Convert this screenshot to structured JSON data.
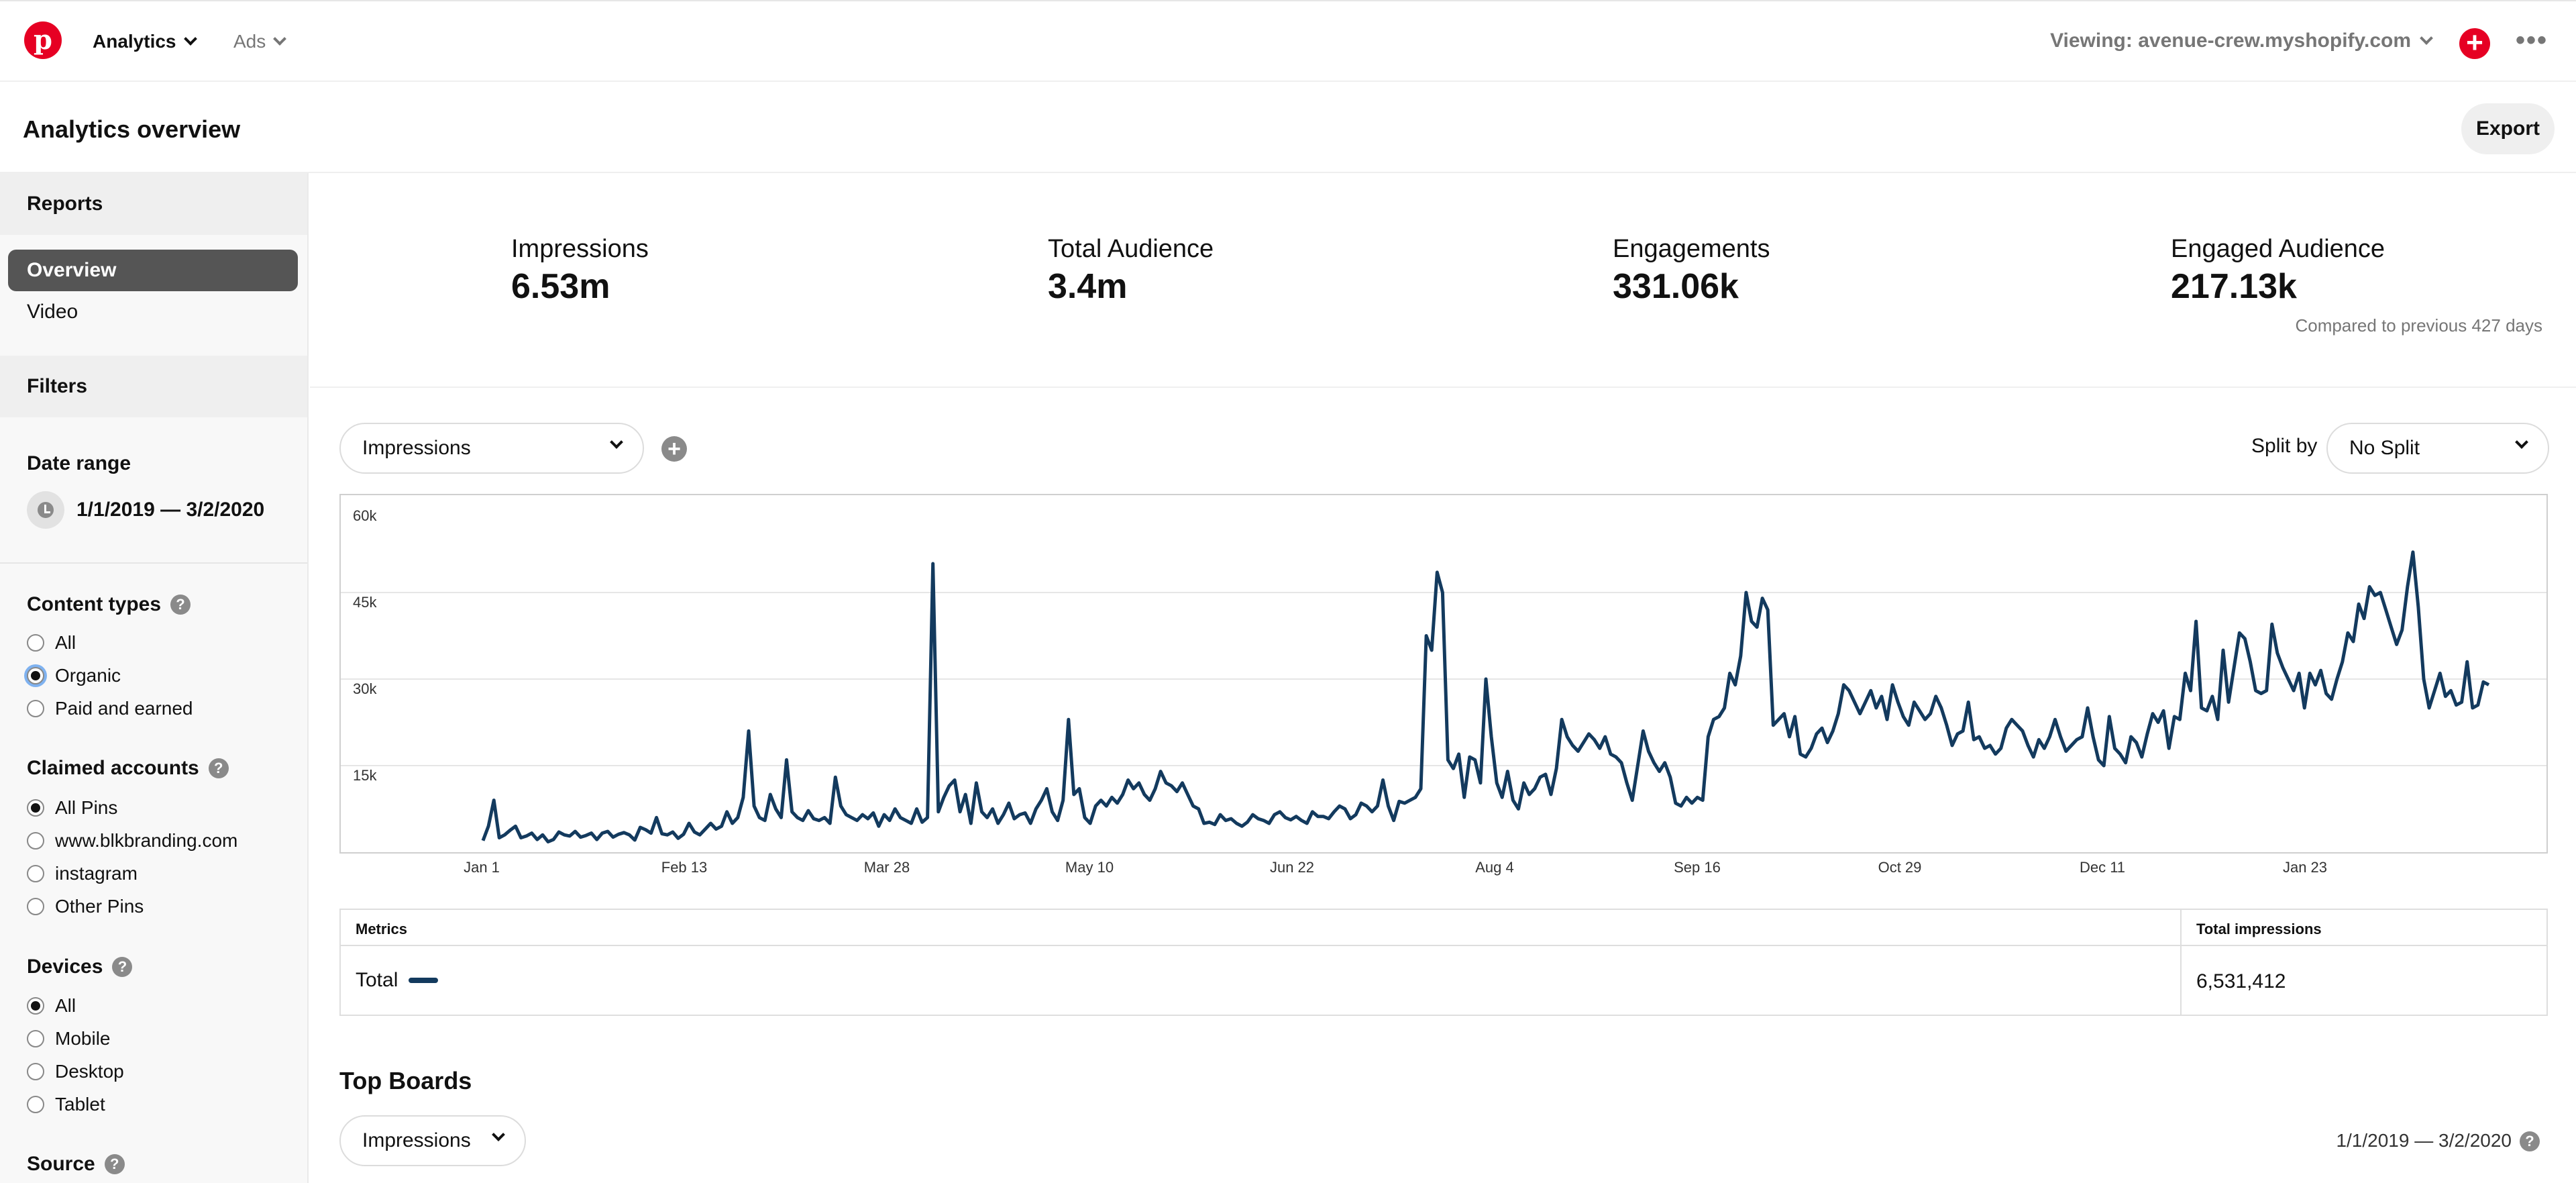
{
  "topnav": {
    "logo_letter": "p",
    "analytics_label": "Analytics",
    "ads_label": "Ads",
    "viewing_label": "Viewing: avenue-crew.myshopify.com",
    "add_symbol": "+",
    "more_symbol": "•••",
    "brand_color": "#e60023"
  },
  "header": {
    "title": "Analytics overview",
    "export_label": "Export"
  },
  "sidebar": {
    "reports_heading": "Reports",
    "reports": [
      {
        "label": "Overview",
        "selected": true
      },
      {
        "label": "Video",
        "selected": false
      }
    ],
    "filters_heading": "Filters",
    "date_range_label": "Date range",
    "date_range_value": "1/1/2019 — 3/2/2020",
    "content_types": {
      "label": "Content types",
      "options": [
        "All",
        "Organic",
        "Paid and earned"
      ],
      "selected": "Organic"
    },
    "claimed_accounts": {
      "label": "Claimed accounts",
      "options": [
        "All Pins",
        "www.blkbranding.com",
        "instagram",
        "Other Pins"
      ],
      "selected": "All Pins"
    },
    "devices": {
      "label": "Devices",
      "options": [
        "All",
        "Mobile",
        "Desktop",
        "Tablet"
      ],
      "selected": "All"
    },
    "source_label": "Source",
    "help_symbol": "?"
  },
  "stats": {
    "items": [
      {
        "label": "Impressions",
        "value": "6.53m"
      },
      {
        "label": "Total Audience",
        "value": "3.4m"
      },
      {
        "label": "Engagements",
        "value": "331.06k"
      },
      {
        "label": "Engaged Audience",
        "value": "217.13k"
      }
    ],
    "compared_note": "Compared to previous 427 days"
  },
  "controls": {
    "metric_select": "Impressions",
    "add_metric_symbol": "+",
    "split_by_label": "Split by",
    "split_select": "No Split"
  },
  "chart_data": {
    "type": "line",
    "ylim": [
      0,
      60000
    ],
    "y_ticks": [
      "60k",
      "45k",
      "30k",
      "15k"
    ],
    "x_ticks": [
      "Jan 1",
      "Feb 13",
      "Mar 28",
      "May 10",
      "Jun 22",
      "Aug 4",
      "Sep 16",
      "Oct 29",
      "Dec 11",
      "Jan 23"
    ],
    "line_color": "#133a5e",
    "grid": true,
    "series": [
      {
        "values": [
          2000,
          4500,
          9000,
          2500,
          3000,
          3800,
          4500,
          2500,
          2800,
          3300,
          2200,
          3000,
          1800,
          2200,
          3500,
          3000,
          2800,
          3600,
          2600,
          2900,
          3300,
          2200,
          3300,
          3600,
          2600,
          3100,
          3400,
          3000,
          2100,
          4300,
          3900,
          3300,
          6000,
          3200,
          3000,
          3500,
          2400,
          3100,
          5000,
          3500,
          3000,
          4000,
          5000,
          4000,
          4500,
          7000,
          5000,
          6000,
          9500,
          21000,
          8000,
          6000,
          5500,
          10000,
          7500,
          6000,
          16000,
          7000,
          6000,
          5500,
          7200,
          5800,
          5500,
          6000,
          5000,
          13000,
          8000,
          6500,
          6000,
          5500,
          6500,
          5800,
          6800,
          4500,
          6500,
          5500,
          7500,
          6000,
          5500,
          5000,
          7500,
          5200,
          6000,
          50000,
          7000,
          9500,
          11500,
          12500,
          7000,
          10000,
          5000,
          12000,
          7000,
          6000,
          7500,
          5000,
          6500,
          8500,
          5800,
          6500,
          6800,
          5000,
          7500,
          9000,
          11000,
          7000,
          5500,
          9000,
          23000,
          10000,
          11000,
          6000,
          5000,
          8000,
          9000,
          8000,
          9500,
          8500,
          10000,
          12500,
          11000,
          12000,
          10000,
          9000,
          11000,
          14000,
          12000,
          11500,
          10500,
          12000,
          10000,
          8000,
          7500,
          5000,
          5200,
          4800,
          6500,
          5500,
          5800,
          5000,
          4500,
          5200,
          6500,
          5800,
          5500,
          5000,
          6500,
          7000,
          6000,
          5600,
          6200,
          5500,
          5000,
          7000,
          6200,
          6200,
          5800,
          7000,
          8000,
          7500,
          5800,
          6500,
          8500,
          8000,
          7000,
          8000,
          12500,
          8000,
          5500,
          8800,
          8500,
          9000,
          9500,
          11000,
          37500,
          35000,
          48500,
          45000,
          16000,
          14500,
          17000,
          9500,
          16500,
          16000,
          12000,
          30000,
          20000,
          12000,
          9500,
          14000,
          9000,
          7500,
          12000,
          10000,
          11000,
          13000,
          13500,
          10000,
          14500,
          23000,
          20000,
          18500,
          17500,
          19000,
          20500,
          19500,
          18000,
          20000,
          17000,
          16500,
          15500,
          12000,
          9000,
          15000,
          21000,
          17500,
          15500,
          14000,
          15500,
          13000,
          8500,
          8000,
          9500,
          8500,
          9500,
          9000,
          20000,
          23000,
          23500,
          25000,
          31000,
          29000,
          34000,
          45000,
          40000,
          39000,
          44000,
          42000,
          22000,
          23000,
          24000,
          20000,
          23500,
          17000,
          16500,
          18000,
          20500,
          21500,
          19000,
          21000,
          24000,
          29000,
          28000,
          26000,
          24000,
          26000,
          28000,
          25000,
          27000,
          23000,
          29000,
          26000,
          23500,
          22000,
          26000,
          24500,
          23000,
          24000,
          27000,
          25000,
          22000,
          18500,
          20500,
          21000,
          26000,
          19500,
          20000,
          18000,
          18500,
          17000,
          18000,
          21500,
          23000,
          22000,
          21000,
          18500,
          16500,
          19500,
          18000,
          20000,
          23000,
          20000,
          17500,
          18500,
          19500,
          20000,
          25000,
          20000,
          16000,
          15000,
          23500,
          18000,
          17000,
          15500,
          20000,
          19000,
          16500,
          20500,
          24000,
          22500,
          24500,
          18000,
          23500,
          23000,
          31000,
          28000,
          40000,
          25000,
          24500,
          27000,
          23000,
          35000,
          26000,
          32000,
          38000,
          37000,
          33000,
          28000,
          27500,
          28000,
          39500,
          34500,
          32000,
          30000,
          28000,
          31000,
          25000,
          31000,
          29000,
          31500,
          27500,
          26500,
          30000,
          33000,
          38000,
          36500,
          43000,
          40500,
          46000,
          44500,
          45000,
          42000,
          39000,
          36000,
          38500,
          46000,
          52000,
          42500,
          30000,
          25000,
          28000,
          31000,
          27000,
          28000,
          25500,
          26000,
          33000,
          25000,
          25500,
          29500,
          29000
        ]
      }
    ]
  },
  "metrics_table": {
    "col_metrics": "Metrics",
    "col_total": "Total impressions",
    "row_name": "Total",
    "row_value": "6,531,412"
  },
  "top_boards": {
    "title": "Top Boards",
    "select": "Impressions",
    "date_range": "1/1/2019 — 3/2/2020"
  }
}
